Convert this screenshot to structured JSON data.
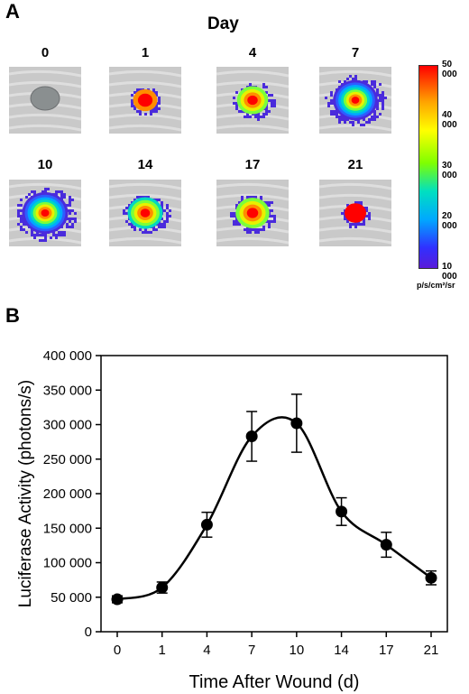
{
  "panel_a": {
    "letter": "A",
    "title": "Day",
    "thumbnails": [
      {
        "day": "0",
        "intensity": 0.0
      },
      {
        "day": "1",
        "intensity": 0.2
      },
      {
        "day": "4",
        "intensity": 0.45
      },
      {
        "day": "7",
        "intensity": 0.95
      },
      {
        "day": "10",
        "intensity": 1.0
      },
      {
        "day": "14",
        "intensity": 0.6
      },
      {
        "day": "17",
        "intensity": 0.55
      },
      {
        "day": "21",
        "intensity": 0.1
      }
    ],
    "colorbar": {
      "ticks": [
        "50 000",
        "40 000",
        "30 000",
        "20 000",
        "10 000"
      ],
      "unit": "p/s/cm²/sr"
    }
  },
  "panel_b": {
    "letter": "B"
  },
  "chart_data": {
    "type": "line",
    "xlabel": "Time After Wound (d)",
    "ylabel": "Luciferase Activity (photons/s)",
    "categories": [
      "0",
      "1",
      "4",
      "7",
      "10",
      "14",
      "17",
      "21"
    ],
    "ylim": [
      0,
      400000
    ],
    "y_ticks": [
      "0",
      "50 000",
      "100 000",
      "150 000",
      "200 000",
      "250 000",
      "300 000",
      "350 000",
      "400 000"
    ],
    "series": [
      {
        "values": [
          47000,
          64000,
          155000,
          283000,
          302000,
          174000,
          126000,
          78000
        ],
        "error": [
          5000,
          8000,
          18000,
          36000,
          42000,
          20000,
          18000,
          10000
        ]
      }
    ],
    "grid": false
  }
}
